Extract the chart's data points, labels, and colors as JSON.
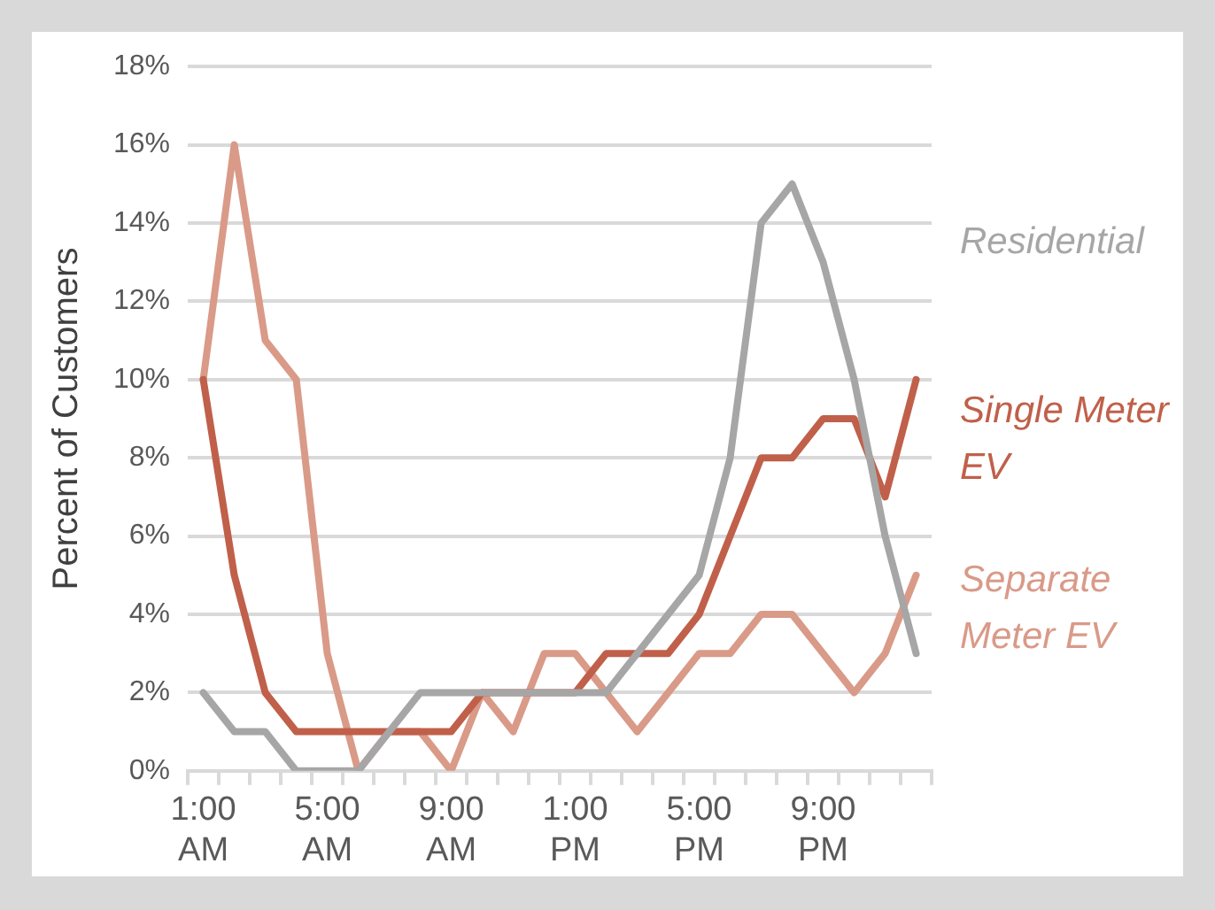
{
  "chart_data": {
    "type": "line",
    "ylabel": "Percent of Customers",
    "categories": [
      "1:00 AM",
      null,
      null,
      null,
      "5:00 AM",
      null,
      null,
      null,
      "9:00 AM",
      null,
      null,
      null,
      "1:00 PM",
      null,
      null,
      null,
      "5:00 PM",
      null,
      null,
      null,
      "9:00 PM",
      null,
      null,
      null
    ],
    "series": [
      {
        "name": "Residential",
        "color": "#a6a6a6",
        "values": [
          2,
          1,
          1,
          0,
          0,
          0,
          1,
          2,
          2,
          2,
          2,
          2,
          2,
          2,
          3,
          4,
          5,
          8,
          14,
          15,
          13,
          10,
          6,
          3
        ]
      },
      {
        "name": "Single Meter EV",
        "color": "#c0604a",
        "values": [
          10,
          5,
          2,
          1,
          1,
          1,
          1,
          1,
          1,
          2,
          2,
          2,
          2,
          3,
          3,
          3,
          4,
          6,
          8,
          8,
          9,
          9,
          7,
          10
        ]
      },
      {
        "name": "Separate Meter EV",
        "color": "#d99a88",
        "values": [
          10,
          16,
          11,
          10,
          3,
          0,
          1,
          1,
          0,
          2,
          1,
          3,
          3,
          2,
          1,
          2,
          3,
          3,
          4,
          4,
          3,
          2,
          3,
          5
        ]
      }
    ],
    "ylim": [
      0,
      18
    ],
    "yticks": [
      {
        "value": 0,
        "label": "0%"
      },
      {
        "value": 2,
        "label": "2%"
      },
      {
        "value": 4,
        "label": "4%"
      },
      {
        "value": 6,
        "label": "6%"
      },
      {
        "value": 8,
        "label": "8%"
      },
      {
        "value": 10,
        "label": "10%"
      },
      {
        "value": 12,
        "label": "12%"
      },
      {
        "value": 14,
        "label": "14%"
      },
      {
        "value": 16,
        "label": "16%"
      },
      {
        "value": 18,
        "label": "18%"
      }
    ],
    "grid": "y",
    "legend": false,
    "marker": "none",
    "line_style": "solid"
  }
}
